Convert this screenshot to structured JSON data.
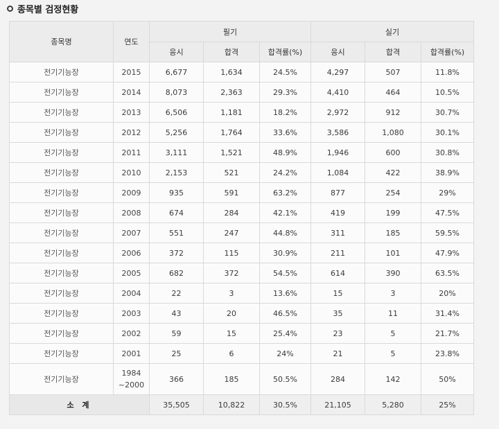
{
  "page_title": "종목별 검정현황",
  "table": {
    "headers": {
      "item": "종목명",
      "year": "연도",
      "written": "필기",
      "practical": "실기",
      "applicants": "응시",
      "passed": "합격",
      "pass_rate": "합격률(%)"
    },
    "rows": [
      {
        "name": "전기기능장",
        "year": "2015",
        "w_app": "6,677",
        "w_pass": "1,634",
        "w_rate": "24.5%",
        "p_app": "4,297",
        "p_pass": "507",
        "p_rate": "11.8%"
      },
      {
        "name": "전기기능장",
        "year": "2014",
        "w_app": "8,073",
        "w_pass": "2,363",
        "w_rate": "29.3%",
        "p_app": "4,410",
        "p_pass": "464",
        "p_rate": "10.5%"
      },
      {
        "name": "전기기능장",
        "year": "2013",
        "w_app": "6,506",
        "w_pass": "1,181",
        "w_rate": "18.2%",
        "p_app": "2,972",
        "p_pass": "912",
        "p_rate": "30.7%"
      },
      {
        "name": "전기기능장",
        "year": "2012",
        "w_app": "5,256",
        "w_pass": "1,764",
        "w_rate": "33.6%",
        "p_app": "3,586",
        "p_pass": "1,080",
        "p_rate": "30.1%"
      },
      {
        "name": "전기기능장",
        "year": "2011",
        "w_app": "3,111",
        "w_pass": "1,521",
        "w_rate": "48.9%",
        "p_app": "1,946",
        "p_pass": "600",
        "p_rate": "30.8%"
      },
      {
        "name": "전기기능장",
        "year": "2010",
        "w_app": "2,153",
        "w_pass": "521",
        "w_rate": "24.2%",
        "p_app": "1,084",
        "p_pass": "422",
        "p_rate": "38.9%"
      },
      {
        "name": "전기기능장",
        "year": "2009",
        "w_app": "935",
        "w_pass": "591",
        "w_rate": "63.2%",
        "p_app": "877",
        "p_pass": "254",
        "p_rate": "29%"
      },
      {
        "name": "전기기능장",
        "year": "2008",
        "w_app": "674",
        "w_pass": "284",
        "w_rate": "42.1%",
        "p_app": "419",
        "p_pass": "199",
        "p_rate": "47.5%"
      },
      {
        "name": "전기기능장",
        "year": "2007",
        "w_app": "551",
        "w_pass": "247",
        "w_rate": "44.8%",
        "p_app": "311",
        "p_pass": "185",
        "p_rate": "59.5%"
      },
      {
        "name": "전기기능장",
        "year": "2006",
        "w_app": "372",
        "w_pass": "115",
        "w_rate": "30.9%",
        "p_app": "211",
        "p_pass": "101",
        "p_rate": "47.9%"
      },
      {
        "name": "전기기능장",
        "year": "2005",
        "w_app": "682",
        "w_pass": "372",
        "w_rate": "54.5%",
        "p_app": "614",
        "p_pass": "390",
        "p_rate": "63.5%"
      },
      {
        "name": "전기기능장",
        "year": "2004",
        "w_app": "22",
        "w_pass": "3",
        "w_rate": "13.6%",
        "p_app": "15",
        "p_pass": "3",
        "p_rate": "20%"
      },
      {
        "name": "전기기능장",
        "year": "2003",
        "w_app": "43",
        "w_pass": "20",
        "w_rate": "46.5%",
        "p_app": "35",
        "p_pass": "11",
        "p_rate": "31.4%"
      },
      {
        "name": "전기기능장",
        "year": "2002",
        "w_app": "59",
        "w_pass": "15",
        "w_rate": "25.4%",
        "p_app": "23",
        "p_pass": "5",
        "p_rate": "21.7%"
      },
      {
        "name": "전기기능장",
        "year": "2001",
        "w_app": "25",
        "w_pass": "6",
        "w_rate": "24%",
        "p_app": "21",
        "p_pass": "5",
        "p_rate": "23.8%"
      },
      {
        "name": "전기기능장",
        "year": "1984 ~2000",
        "w_app": "366",
        "w_pass": "185",
        "w_rate": "50.5%",
        "p_app": "284",
        "p_pass": "142",
        "p_rate": "50%"
      }
    ],
    "total": {
      "label": "소 계",
      "w_app": "35,505",
      "w_pass": "10,822",
      "w_rate": "30.5%",
      "p_app": "21,105",
      "p_pass": "5,280",
      "p_rate": "25%"
    }
  }
}
